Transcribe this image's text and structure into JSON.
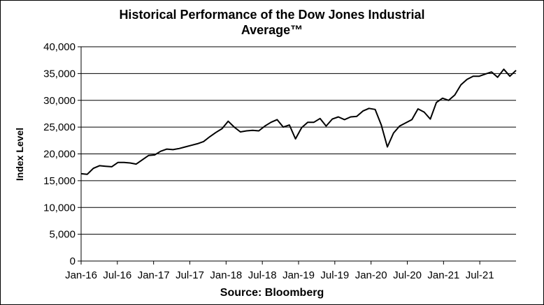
{
  "chart_data": {
    "type": "line",
    "title_line1": "Historical Performance of the Dow Jones Industrial",
    "title_line2": "Average™",
    "ylabel": "Index Level",
    "source": "Source: Bloomberg",
    "ylim": [
      0,
      40000
    ],
    "yticks": [
      0,
      5000,
      10000,
      15000,
      20000,
      25000,
      30000,
      35000,
      40000
    ],
    "ytick_labels": [
      "0",
      "5,000",
      "10,000",
      "15,000",
      "20,000",
      "25,000",
      "30,000",
      "35,000",
      "40,000"
    ],
    "xlim": [
      "2016-01",
      "2021-12"
    ],
    "xtick_labels": [
      "Jan-16",
      "Jul-16",
      "Jan-17",
      "Jul-17",
      "Jan-18",
      "Jul-18",
      "Jan-19",
      "Jul-19",
      "Jan-20",
      "Jul-20",
      "Jan-21",
      "Jul-21"
    ],
    "grid": "horizontal",
    "line_color": "#000000",
    "series": [
      {
        "x": [
          "2016-01",
          "2016-02",
          "2016-03",
          "2016-04",
          "2016-05",
          "2016-06",
          "2016-07",
          "2016-08",
          "2016-09",
          "2016-10",
          "2016-11",
          "2016-12",
          "2017-01",
          "2017-02",
          "2017-03",
          "2017-04",
          "2017-05",
          "2017-06",
          "2017-07",
          "2017-08",
          "2017-09",
          "2017-10",
          "2017-11",
          "2017-12",
          "2018-01",
          "2018-02",
          "2018-03",
          "2018-04",
          "2018-05",
          "2018-06",
          "2018-07",
          "2018-08",
          "2018-09",
          "2018-10",
          "2018-11",
          "2018-12",
          "2019-01",
          "2019-02",
          "2019-03",
          "2019-04",
          "2019-05",
          "2019-06",
          "2019-07",
          "2019-08",
          "2019-09",
          "2019-10",
          "2019-11",
          "2019-12",
          "2020-01",
          "2020-02",
          "2020-03",
          "2020-04",
          "2020-05",
          "2020-06",
          "2020-07",
          "2020-08",
          "2020-09",
          "2020-10",
          "2020-11",
          "2020-12",
          "2021-01",
          "2021-02",
          "2021-03",
          "2021-04",
          "2021-05",
          "2021-06",
          "2021-07",
          "2021-08",
          "2021-09",
          "2021-10",
          "2021-11",
          "2021-12"
        ],
        "y": [
          16300,
          16200,
          17300,
          17800,
          17700,
          17600,
          18400,
          18400,
          18300,
          18100,
          18900,
          19700,
          19800,
          20500,
          20900,
          20800,
          21000,
          21300,
          21600,
          21900,
          22300,
          23200,
          24000,
          24700,
          26100,
          25000,
          24100,
          24300,
          24400,
          24300,
          25200,
          25900,
          26400,
          25000,
          25400,
          22800,
          24900,
          25900,
          25900,
          26600,
          25200,
          26500,
          26900,
          26400,
          26900,
          27000,
          28000,
          28500,
          28300,
          25400,
          21300,
          23900,
          25200,
          25800,
          26400,
          28400,
          27800,
          26500,
          29600,
          30400,
          30000,
          31000,
          32900,
          33900,
          34500,
          34500,
          34900,
          35300,
          34300,
          35800,
          34500,
          35600
        ]
      }
    ]
  }
}
